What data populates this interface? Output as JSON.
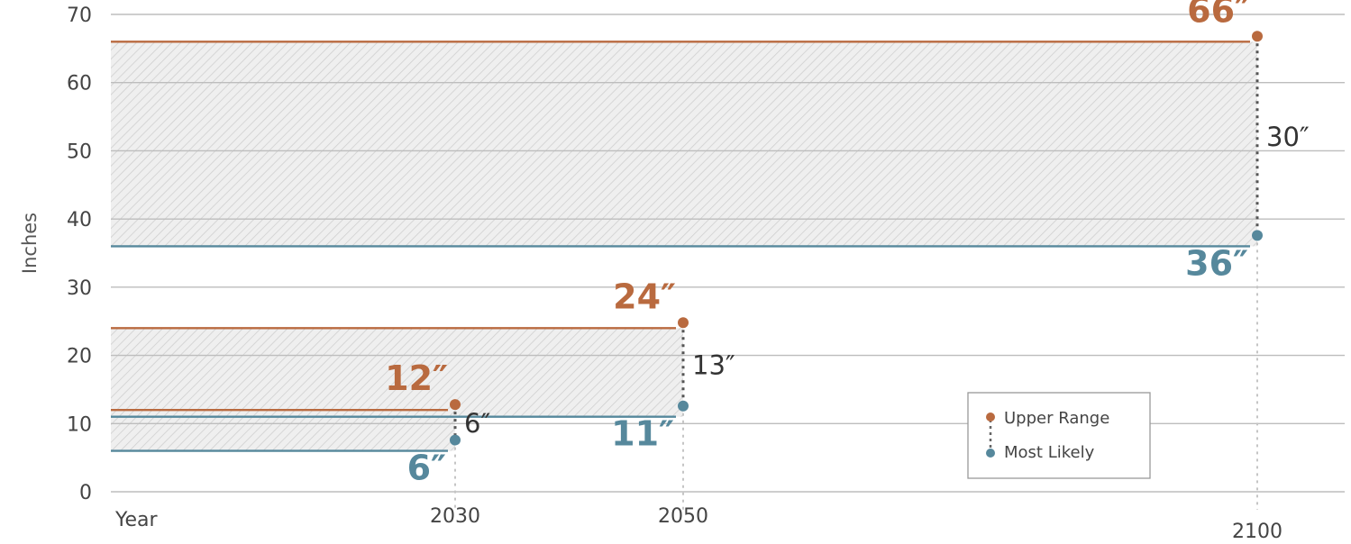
{
  "chart_data": {
    "type": "range",
    "ylabel": "Inches",
    "xlabel": "Year",
    "ylim": [
      0,
      70
    ],
    "yticks": [
      0,
      10,
      20,
      30,
      40,
      50,
      60,
      70
    ],
    "grid": true,
    "legend_position": "bottom-right",
    "colors": {
      "upper": "#b96a3f",
      "likely": "#56889c",
      "grid": "#bdbdbd",
      "hatch": "#c8c8c8",
      "band_fill": "#eeeeee"
    },
    "series": [
      {
        "name": "Upper Range",
        "values": [
          12,
          24,
          66
        ]
      },
      {
        "name": "Most Likely",
        "values": [
          6,
          11,
          36
        ]
      }
    ],
    "periods": [
      {
        "year": "2030",
        "upper": 12,
        "likely": 6,
        "upper_label": "12″",
        "likely_label": "6″",
        "difference_label": "6″"
      },
      {
        "year": "2050",
        "upper": 24,
        "likely": 11,
        "upper_label": "24″",
        "likely_label": "11″",
        "difference_label": "13″"
      },
      {
        "year": "2100",
        "upper": 66,
        "likely": 36,
        "upper_label": "66″",
        "likely_label": "36″",
        "difference_label": "30″"
      }
    ]
  }
}
